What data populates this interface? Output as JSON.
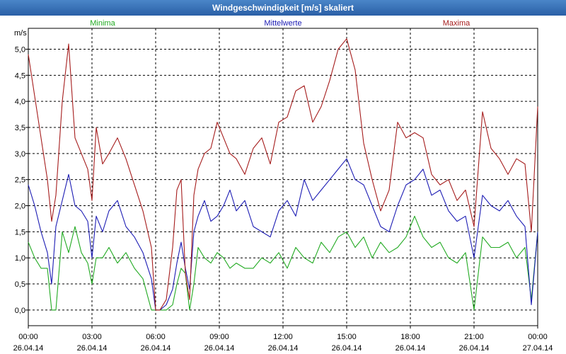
{
  "window": {
    "title": "Windgeschwindigkeit [m/s] skaliert"
  },
  "chart_data": {
    "type": "line",
    "title": "Windgeschwindigkeit [m/s] skaliert",
    "ylabel": "m/s",
    "xlabel": "",
    "ylim": [
      -0.3,
      5.4
    ],
    "yticks": [
      "0,0",
      "0,5",
      "1,0",
      "1,5",
      "2,0",
      "2,5",
      "3,0",
      "3,5",
      "4,0",
      "4,5",
      "5,0"
    ],
    "ytick_values": [
      0,
      0.5,
      1,
      1.5,
      2,
      2.5,
      3,
      3.5,
      4,
      4.5,
      5
    ],
    "xlim": [
      0,
      24
    ],
    "xticks": [
      {
        "time": "00:00",
        "date": "26.04.14",
        "hour": 0
      },
      {
        "time": "03:00",
        "date": "26.04.14",
        "hour": 3
      },
      {
        "time": "06:00",
        "date": "26.04.14",
        "hour": 6
      },
      {
        "time": "09:00",
        "date": "26.04.14",
        "hour": 9
      },
      {
        "time": "12:00",
        "date": "26.04.14",
        "hour": 12
      },
      {
        "time": "15:00",
        "date": "26.04.14",
        "hour": 15
      },
      {
        "time": "18:00",
        "date": "26.04.14",
        "hour": 18
      },
      {
        "time": "21:00",
        "date": "26.04.14",
        "hour": 21
      },
      {
        "time": "00:00",
        "date": "27.04.14",
        "hour": 24
      }
    ],
    "grid": true,
    "legend_position": "top",
    "series": [
      {
        "name": "Minima",
        "color": "#22aa22",
        "x": [
          0,
          0.3,
          0.6,
          0.9,
          1.1,
          1.3,
          1.6,
          1.9,
          2.2,
          2.5,
          2.8,
          3.0,
          3.2,
          3.5,
          3.8,
          4.2,
          4.6,
          5.0,
          5.4,
          5.8,
          6.0,
          6.2,
          6.5,
          6.8,
          7.0,
          7.2,
          7.4,
          7.6,
          7.8,
          8.0,
          8.3,
          8.6,
          8.9,
          9.2,
          9.5,
          9.8,
          10.2,
          10.6,
          11.0,
          11.4,
          11.8,
          12.2,
          12.6,
          13.0,
          13.4,
          13.8,
          14.2,
          14.6,
          15.0,
          15.4,
          15.8,
          16.2,
          16.6,
          17.0,
          17.4,
          17.8,
          18.2,
          18.6,
          19.0,
          19.4,
          19.8,
          20.2,
          20.6,
          21.0,
          21.4,
          21.8,
          22.2,
          22.6,
          23.0,
          23.4,
          23.7,
          24.0
        ],
        "y": [
          1.3,
          1.0,
          0.8,
          0.8,
          0.0,
          0.0,
          1.5,
          1.1,
          1.6,
          1.1,
          0.9,
          0.5,
          1.0,
          1.0,
          1.2,
          0.9,
          1.1,
          0.8,
          0.6,
          0.0,
          0.0,
          0.0,
          0.0,
          0.1,
          0.5,
          0.8,
          0.7,
          0.0,
          0.5,
          1.2,
          1.0,
          0.9,
          1.1,
          1.0,
          0.8,
          0.9,
          0.8,
          0.8,
          1.0,
          0.9,
          1.1,
          0.8,
          1.2,
          1.0,
          0.9,
          1.3,
          1.1,
          1.4,
          1.5,
          1.2,
          1.4,
          1.0,
          1.3,
          1.1,
          1.2,
          1.4,
          1.8,
          1.4,
          1.2,
          1.3,
          1.0,
          0.9,
          1.1,
          0.0,
          1.4,
          1.2,
          1.2,
          1.3,
          1.0,
          1.2,
          0.2,
          1.5
        ]
      },
      {
        "name": "Mittelwerte",
        "color": "#1c1cb4",
        "x": [
          0,
          0.3,
          0.6,
          0.9,
          1.1,
          1.3,
          1.6,
          1.9,
          2.2,
          2.5,
          2.8,
          3.0,
          3.2,
          3.5,
          3.8,
          4.2,
          4.6,
          5.0,
          5.4,
          5.8,
          6.0,
          6.2,
          6.5,
          6.8,
          7.0,
          7.2,
          7.4,
          7.6,
          7.8,
          8.0,
          8.3,
          8.6,
          8.9,
          9.2,
          9.5,
          9.8,
          10.2,
          10.6,
          11.0,
          11.4,
          11.8,
          12.2,
          12.6,
          13.0,
          13.4,
          13.8,
          14.2,
          14.6,
          15.0,
          15.4,
          15.8,
          16.2,
          16.6,
          17.0,
          17.4,
          17.8,
          18.2,
          18.6,
          19.0,
          19.4,
          19.8,
          20.2,
          20.6,
          21.0,
          21.4,
          21.8,
          22.2,
          22.6,
          23.0,
          23.4,
          23.7,
          24.0
        ],
        "y": [
          2.4,
          2.0,
          1.5,
          1.1,
          0.5,
          1.6,
          2.1,
          2.6,
          2.0,
          1.9,
          1.7,
          1.0,
          1.8,
          1.5,
          1.9,
          2.1,
          1.6,
          1.4,
          1.1,
          0.6,
          0.0,
          0.0,
          0.1,
          0.4,
          0.9,
          1.3,
          0.8,
          0.4,
          1.5,
          1.8,
          2.1,
          1.7,
          1.8,
          2.0,
          2.3,
          1.9,
          2.1,
          1.6,
          1.5,
          1.4,
          1.9,
          2.1,
          1.8,
          2.5,
          2.1,
          2.3,
          2.5,
          2.7,
          2.9,
          2.5,
          2.4,
          2.0,
          1.6,
          1.5,
          2.0,
          2.4,
          2.5,
          2.7,
          2.2,
          2.3,
          1.9,
          1.7,
          1.8,
          1.0,
          2.2,
          2.0,
          1.9,
          2.1,
          1.8,
          1.6,
          0.1,
          1.5
        ]
      },
      {
        "name": "Maxima",
        "color": "#a51c1c",
        "x": [
          0,
          0.3,
          0.6,
          0.9,
          1.1,
          1.3,
          1.6,
          1.9,
          2.2,
          2.5,
          2.8,
          3.0,
          3.2,
          3.5,
          3.8,
          4.2,
          4.6,
          5.0,
          5.4,
          5.8,
          6.0,
          6.2,
          6.5,
          6.8,
          7.0,
          7.2,
          7.4,
          7.6,
          7.8,
          8.0,
          8.3,
          8.6,
          8.9,
          9.2,
          9.5,
          9.8,
          10.2,
          10.6,
          11.0,
          11.4,
          11.8,
          12.2,
          12.6,
          13.0,
          13.4,
          13.8,
          14.2,
          14.6,
          15.0,
          15.4,
          15.8,
          16.2,
          16.6,
          17.0,
          17.4,
          17.8,
          18.2,
          18.6,
          19.0,
          19.4,
          19.8,
          20.2,
          20.6,
          21.0,
          21.4,
          21.8,
          22.2,
          22.6,
          23.0,
          23.4,
          23.7,
          24.0
        ],
        "y": [
          4.9,
          4.1,
          3.3,
          2.5,
          1.7,
          2.2,
          4.0,
          5.1,
          3.3,
          3.0,
          2.7,
          2.1,
          3.5,
          2.8,
          3.0,
          3.3,
          2.9,
          2.4,
          1.9,
          1.2,
          0.0,
          0.0,
          0.2,
          1.2,
          2.3,
          2.5,
          0.7,
          0.2,
          2.2,
          2.7,
          3.0,
          3.1,
          3.6,
          3.3,
          3.0,
          2.9,
          2.6,
          3.1,
          3.3,
          2.8,
          3.6,
          3.7,
          4.2,
          4.3,
          3.6,
          3.9,
          4.4,
          5.0,
          5.2,
          4.6,
          3.2,
          2.5,
          1.9,
          2.3,
          3.6,
          3.3,
          3.4,
          3.3,
          2.6,
          2.4,
          2.5,
          2.1,
          2.3,
          1.6,
          3.8,
          3.1,
          2.9,
          2.6,
          2.9,
          2.8,
          1.5,
          3.9
        ]
      }
    ]
  }
}
